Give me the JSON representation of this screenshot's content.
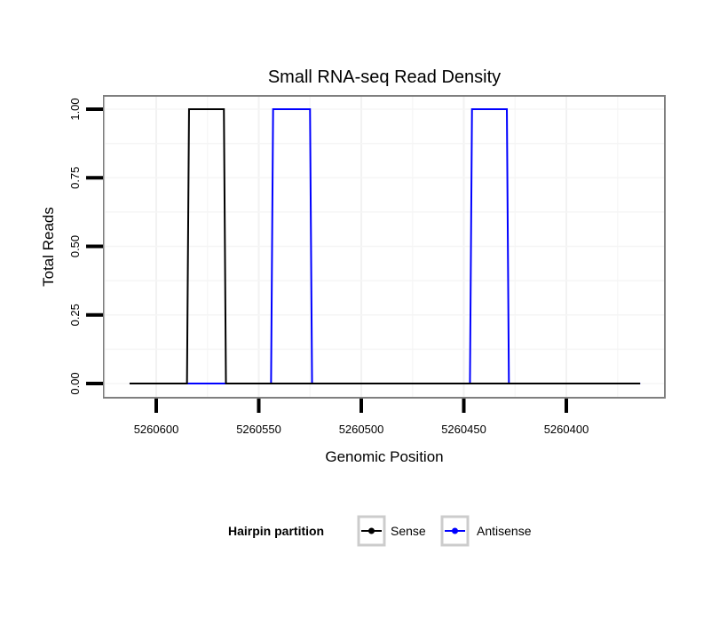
{
  "chart_data": {
    "type": "line",
    "title": "Small RNA-seq Read Density",
    "xlabel": "Genomic Position",
    "ylabel": "Total Reads",
    "x_reversed": true,
    "xlim": [
      5260613,
      5260364
    ],
    "ylim": [
      0,
      1
    ],
    "x_ticks": [
      5260600,
      5260550,
      5260500,
      5260450,
      5260400
    ],
    "x_tick_labels": [
      "5260600",
      "5260550",
      "5260500",
      "5260450",
      "5260400"
    ],
    "y_ticks": [
      0,
      0.25,
      0.5,
      0.75,
      1
    ],
    "y_tick_labels": [
      "0.00",
      "0.25",
      "0.50",
      "0.75",
      "1.00"
    ],
    "grid": true,
    "legend": {
      "title": "Hairpin partition",
      "placement": "bottom"
    },
    "series": [
      {
        "name": "Antisense",
        "color": "#0000ff",
        "points": [
          [
            5260613,
            0
          ],
          [
            5260544,
            0
          ],
          [
            5260543,
            1
          ],
          [
            5260525,
            1
          ],
          [
            5260524,
            0
          ],
          [
            5260447,
            0
          ],
          [
            5260446,
            1
          ],
          [
            5260429,
            1
          ],
          [
            5260428,
            0
          ],
          [
            5260364,
            0
          ]
        ]
      },
      {
        "name": "Sense",
        "color": "#000000",
        "points": [
          [
            5260613,
            0
          ],
          [
            5260585,
            0
          ],
          [
            5260584,
            1
          ],
          [
            5260567,
            1
          ],
          [
            5260566,
            0
          ],
          [
            5260364,
            0
          ]
        ]
      }
    ]
  }
}
